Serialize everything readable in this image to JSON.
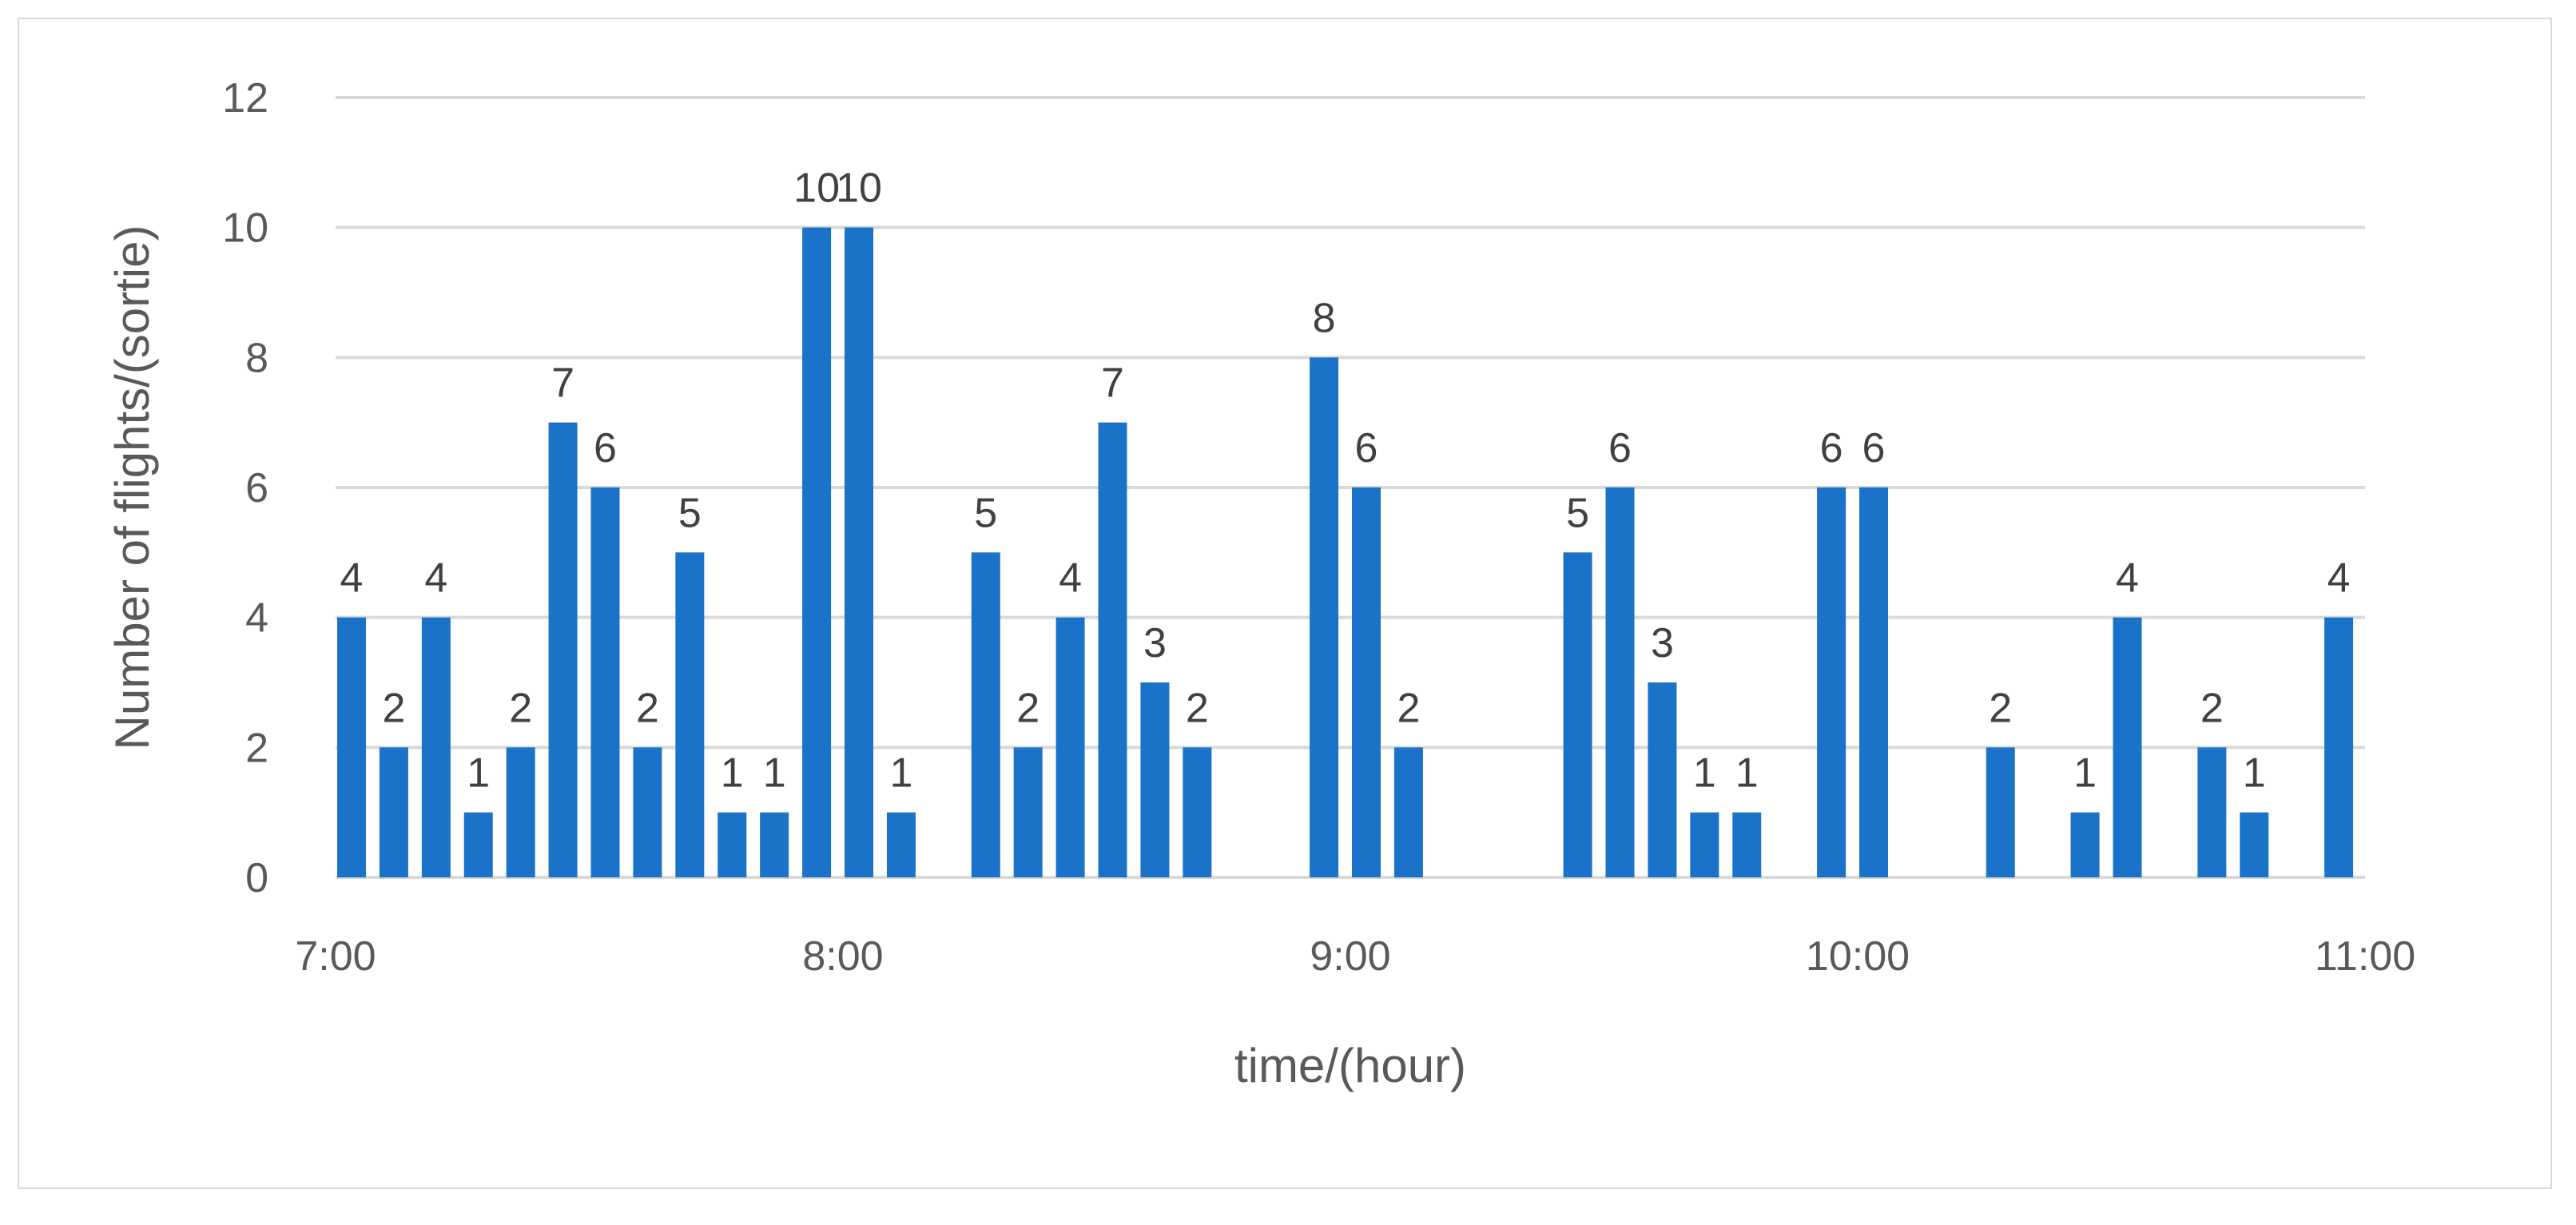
{
  "chart_data": {
    "type": "bar",
    "xlabel": "time/(hour)",
    "ylabel": "Number of flights/(sortie)",
    "x_ticks": [
      "7:00",
      "8:00",
      "9:00",
      "10:00",
      "11:00"
    ],
    "y_ticks": [
      "0",
      "2",
      "4",
      "6",
      "8",
      "10",
      "12"
    ],
    "ylim": [
      0,
      12
    ],
    "grid": true,
    "legend": "none",
    "bar_color": "#1a73c9",
    "points": [
      {
        "t": 0,
        "value": 4
      },
      {
        "t": 5,
        "value": 2
      },
      {
        "t": 10,
        "value": 4
      },
      {
        "t": 15,
        "value": 1
      },
      {
        "t": 20,
        "value": 2
      },
      {
        "t": 25,
        "value": 7
      },
      {
        "t": 30,
        "value": 6
      },
      {
        "t": 35,
        "value": 2
      },
      {
        "t": 40,
        "value": 5
      },
      {
        "t": 45,
        "value": 1
      },
      {
        "t": 50,
        "value": 1
      },
      {
        "t": 55,
        "value": 10
      },
      {
        "t": 60,
        "value": 10
      },
      {
        "t": 65,
        "value": 1
      },
      {
        "t": 75,
        "value": 5
      },
      {
        "t": 80,
        "value": 2
      },
      {
        "t": 85,
        "value": 4
      },
      {
        "t": 90,
        "value": 7
      },
      {
        "t": 95,
        "value": 3
      },
      {
        "t": 100,
        "value": 2
      },
      {
        "t": 115,
        "value": 8
      },
      {
        "t": 120,
        "value": 6
      },
      {
        "t": 125,
        "value": 2
      },
      {
        "t": 145,
        "value": 5
      },
      {
        "t": 150,
        "value": 6
      },
      {
        "t": 155,
        "value": 3
      },
      {
        "t": 160,
        "value": 1
      },
      {
        "t": 165,
        "value": 1
      },
      {
        "t": 175,
        "value": 6
      },
      {
        "t": 180,
        "value": 6
      },
      {
        "t": 195,
        "value": 2
      },
      {
        "t": 205,
        "value": 1
      },
      {
        "t": 210,
        "value": 4
      },
      {
        "t": 220,
        "value": 2
      },
      {
        "t": 225,
        "value": 1
      },
      {
        "t": 235,
        "value": 4
      }
    ]
  }
}
